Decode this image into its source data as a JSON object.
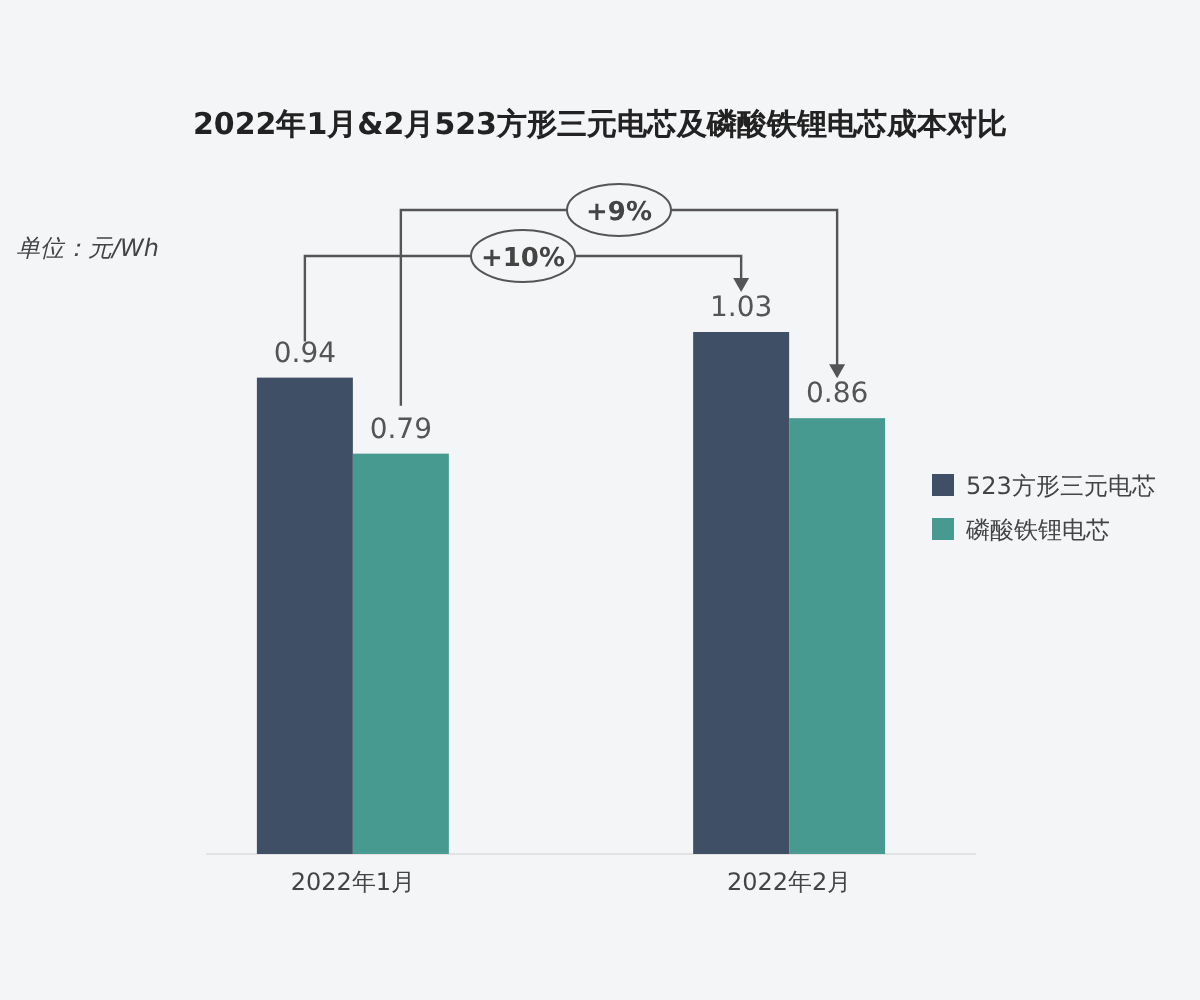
{
  "chart_data": {
    "type": "bar",
    "title": "2022年1月&2月523方形三元电芯及磷酸铁锂电芯成本对比",
    "ylabel": "单位：元/Wh",
    "categories": [
      "2022年1月",
      "2022年2月"
    ],
    "series": [
      {
        "name": "523方形三元电芯",
        "color": "#3f4f66",
        "values": [
          0.94,
          1.03
        ]
      },
      {
        "name": "磷酸铁锂电芯",
        "color": "#479a8f",
        "values": [
          0.79,
          0.86
        ]
      }
    ],
    "data_labels": true,
    "legend": "right",
    "annotations": [
      "+10%",
      "+9%"
    ]
  }
}
